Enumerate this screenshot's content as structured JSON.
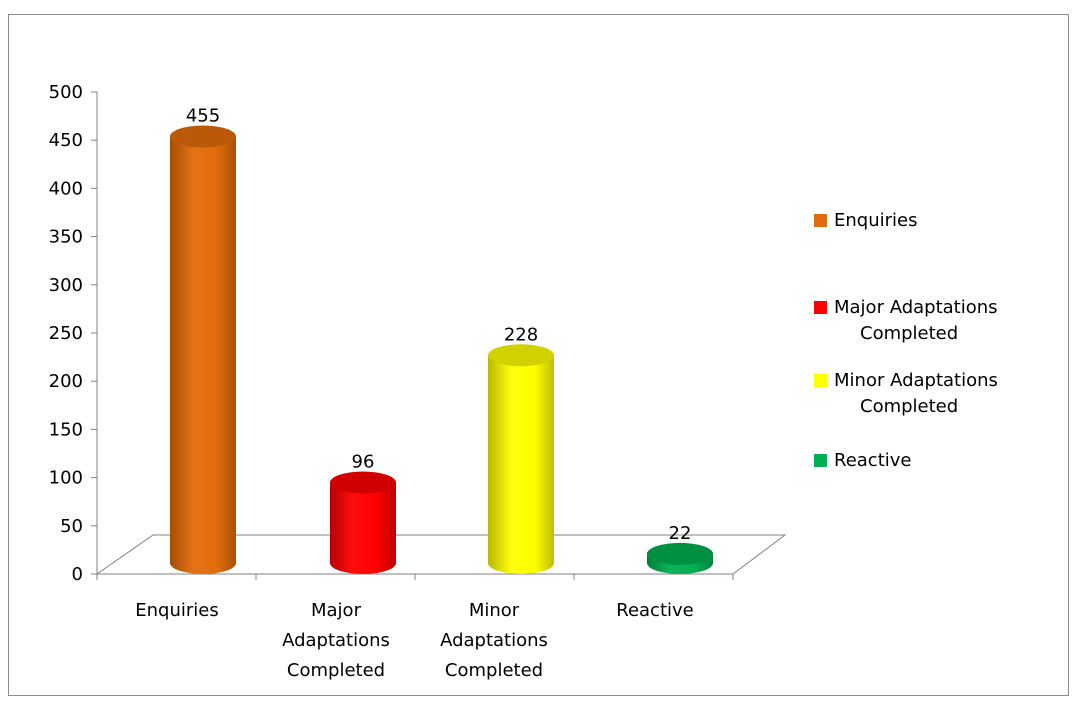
{
  "chart_data": {
    "type": "bar",
    "style": "3d-cylinder",
    "categories": [
      [
        "Enquiries"
      ],
      [
        "Major",
        "Adaptations",
        "Completed"
      ],
      [
        "Minor",
        "Adaptations",
        "Completed"
      ],
      [
        "Reactive"
      ]
    ],
    "values": [
      455,
      96,
      228,
      22
    ],
    "data_labels": [
      "455",
      "96",
      "228",
      "22"
    ],
    "colors": [
      "#e36c0a",
      "#ff0000",
      "#ffff00",
      "#00b050"
    ],
    "legend": {
      "placement": "right",
      "entries": [
        [
          "Enquiries"
        ],
        [
          "Major Adaptations",
          "Completed"
        ],
        [
          "Minor Adaptations",
          "Completed"
        ],
        [
          "Reactive"
        ]
      ]
    },
    "yticks": [
      "0",
      "50",
      "100",
      "150",
      "200",
      "250",
      "300",
      "350",
      "400",
      "450",
      "500"
    ],
    "ylim": [
      0,
      500
    ],
    "grid": false,
    "title": "",
    "xlabel": "",
    "ylabel": ""
  }
}
